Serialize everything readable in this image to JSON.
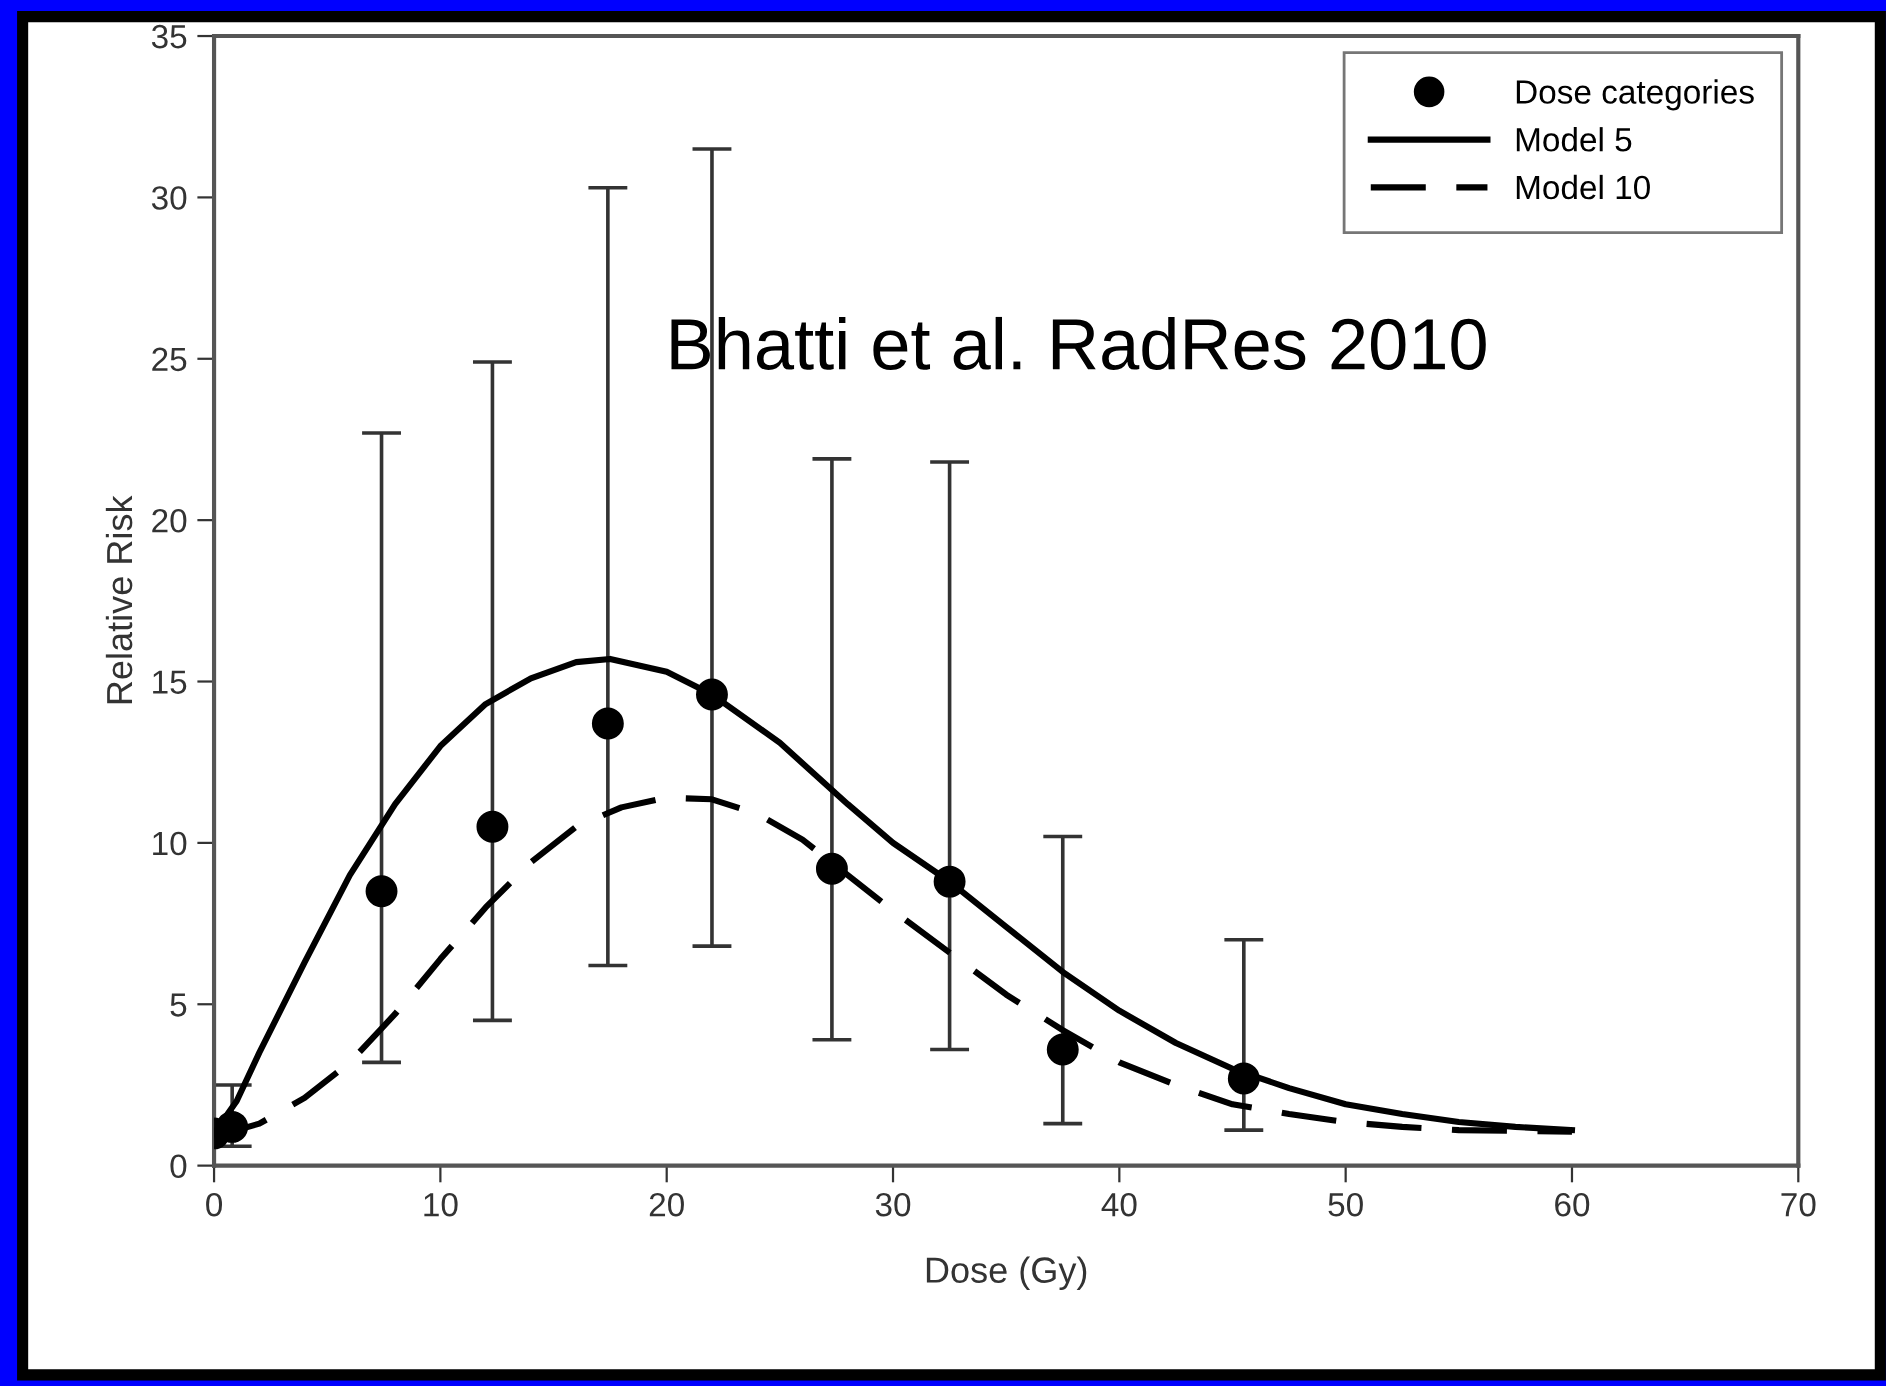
{
  "chart_data": {
    "type": "scatter",
    "xlabel": "Dose (Gy)",
    "ylabel": "Relative Risk",
    "xlim": [
      0,
      70
    ],
    "ylim": [
      0,
      35
    ],
    "xticks": [
      0,
      10,
      20,
      30,
      40,
      50,
      60,
      70
    ],
    "yticks": [
      0,
      5,
      10,
      15,
      20,
      25,
      30,
      35
    ],
    "legend": "top right",
    "grid": false,
    "annotations": [
      "Bhatti et al. RadRes 2010"
    ],
    "series": [
      {
        "name": "Dose categories",
        "color": "#000000",
        "marker": "circle",
        "x": [
          0,
          0.8,
          7.4,
          12.3,
          17.4,
          22,
          27.3,
          32.5,
          37.5,
          45.5
        ],
        "values": [
          1.0,
          1.2,
          8.5,
          10.5,
          13.7,
          14.6,
          9.2,
          8.8,
          3.6,
          2.7
        ],
        "errors": [
          null,
          [
            0.6,
            2.5
          ],
          [
            3.2,
            22.7
          ],
          [
            4.5,
            24.9
          ],
          [
            6.2,
            30.3
          ],
          [
            6.8,
            31.5
          ],
          [
            3.9,
            21.9
          ],
          [
            3.6,
            21.8
          ],
          [
            1.3,
            10.2
          ],
          [
            1.1,
            7.0
          ]
        ]
      },
      {
        "name": "Model 5",
        "type": "line",
        "color": "#000000",
        "line_style": "solid",
        "marker": "none",
        "x": [
          0,
          1,
          2,
          4,
          6,
          8,
          10,
          12,
          14,
          16,
          17.5,
          20,
          22,
          25,
          28,
          30,
          32.5,
          35,
          37.5,
          40,
          42.5,
          45,
          47.5,
          50,
          52.5,
          55,
          57.5,
          60
        ],
        "values": [
          1.0,
          2.0,
          3.5,
          6.3,
          9.0,
          11.2,
          13.0,
          14.3,
          15.1,
          15.6,
          15.7,
          15.3,
          14.6,
          13.1,
          11.2,
          10.0,
          8.8,
          7.4,
          6.0,
          4.8,
          3.8,
          3.0,
          2.4,
          1.9,
          1.6,
          1.35,
          1.2,
          1.1
        ]
      },
      {
        "name": "Model 10",
        "type": "line",
        "color": "#000000",
        "line_style": "dashed",
        "marker": "none",
        "x": [
          0,
          2,
          4,
          6,
          8,
          10,
          12,
          14,
          16,
          18,
          20,
          22,
          24,
          26,
          28,
          30,
          32.5,
          35,
          37.5,
          40,
          42.5,
          45,
          47.5,
          50,
          52.5,
          55,
          60
        ],
        "values": [
          0.9,
          1.3,
          2.1,
          3.2,
          4.7,
          6.4,
          8.0,
          9.4,
          10.5,
          11.1,
          11.4,
          11.35,
          10.9,
          10.1,
          9.0,
          7.9,
          6.6,
          5.3,
          4.2,
          3.2,
          2.5,
          1.9,
          1.6,
          1.35,
          1.2,
          1.1,
          1.05
        ]
      }
    ]
  }
}
